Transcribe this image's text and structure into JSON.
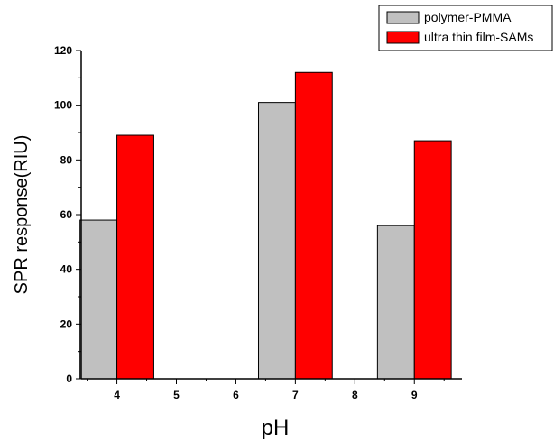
{
  "chart_data": {
    "type": "bar",
    "title": "",
    "xlabel": "pH",
    "ylabel": "SPR response(RIU)",
    "x_ticks": [
      4,
      5,
      6,
      7,
      8,
      9
    ],
    "xlim": [
      3.4,
      9.8
    ],
    "ylim": [
      0,
      120
    ],
    "y_ticks": [
      0,
      20,
      40,
      60,
      80,
      100,
      120
    ],
    "categories": [
      4,
      7,
      9
    ],
    "series": [
      {
        "name": "polymer-PMMA",
        "color": "#c0c0c0",
        "values": [
          58,
          101,
          56
        ]
      },
      {
        "name": "ultra thin film-SAMs",
        "color": "#ff0000",
        "values": [
          89,
          112,
          87
        ]
      }
    ],
    "legend_position": "top-right",
    "grid": false
  }
}
